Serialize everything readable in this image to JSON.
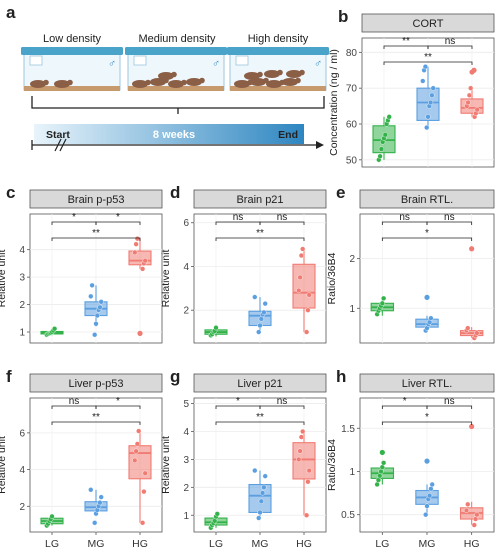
{
  "panel_a": {
    "letter": "a",
    "cage_labels": [
      "Low density",
      "Medium density",
      "High density"
    ],
    "male_symbol": "♂",
    "timeline_start": "Start",
    "timeline_mid": "8 weeks",
    "timeline_end": "End",
    "colors": {
      "cage_lid": "#4aa3c8",
      "mouse": "#8b5e46",
      "bedding": "#c79a6e",
      "timeline_light": "#e8f4fb",
      "timeline_dark": "#2e86c1"
    }
  },
  "colors": {
    "LG": "#33b24a",
    "MG": "#5b9fe0",
    "HG": "#f07b72",
    "facet_strip": "#d9d9d9"
  },
  "chart_data": [
    {
      "id": "b",
      "letter": "b",
      "type": "box",
      "title": "CORT",
      "ylabel": "Concentration (ng / ml)",
      "categories": [
        "LG",
        "MG",
        "HG"
      ],
      "show_xticks": false,
      "ylim": [
        48,
        84
      ],
      "yticks": [
        50,
        60,
        70,
        80
      ],
      "groups": [
        {
          "name": "LG",
          "min": 50,
          "q1": 52,
          "median": 55.5,
          "q3": 59.5,
          "max": 62,
          "points": [
            50,
            51,
            53,
            55,
            56,
            57,
            60,
            61,
            62
          ],
          "outliers": []
        },
        {
          "name": "MG",
          "min": 59,
          "q1": 61,
          "median": 66,
          "q3": 70,
          "max": 76,
          "points": [
            59,
            62,
            65,
            66,
            68,
            70,
            72,
            75,
            76
          ],
          "outliers": []
        },
        {
          "name": "HG",
          "min": 62,
          "q1": 63,
          "median": 64.5,
          "q3": 67,
          "max": 70,
          "points": [
            62,
            63,
            64,
            65,
            66,
            68,
            70
          ],
          "outliers": [
            74.5,
            75
          ]
        }
      ],
      "significance": [
        {
          "from": 0,
          "to": 1,
          "label": "**"
        },
        {
          "from": 1,
          "to": 2,
          "label": "ns"
        },
        {
          "from": 0,
          "to": 2,
          "label": "**"
        }
      ]
    },
    {
      "id": "c",
      "letter": "c",
      "type": "box",
      "title": "Brain p-p53",
      "ylabel": "Relative unit",
      "categories": [
        "LG",
        "MG",
        "HG"
      ],
      "show_xticks": false,
      "ylim": [
        0.6,
        5.3
      ],
      "yticks": [
        1,
        2,
        3,
        4
      ],
      "groups": [
        {
          "name": "LG",
          "min": 0.88,
          "q1": 0.93,
          "median": 0.97,
          "q3": 1.02,
          "max": 1.12,
          "points": [
            0.9,
            0.93,
            0.95,
            0.97,
            1.0,
            1.05,
            1.12
          ],
          "outliers": []
        },
        {
          "name": "MG",
          "min": 1.2,
          "q1": 1.6,
          "median": 1.85,
          "q3": 2.1,
          "max": 2.7,
          "points": [
            0.9,
            1.3,
            1.6,
            1.8,
            1.9,
            2.1,
            2.3,
            2.7
          ],
          "outliers": []
        },
        {
          "name": "HG",
          "min": 3.3,
          "q1": 3.45,
          "median": 3.6,
          "q3": 3.95,
          "max": 4.4,
          "points": [
            3.3,
            3.5,
            3.6,
            3.9,
            4.2,
            4.4
          ],
          "outliers": [
            0.95
          ]
        }
      ],
      "significance": [
        {
          "from": 0,
          "to": 1,
          "label": "*"
        },
        {
          "from": 1,
          "to": 2,
          "label": "*"
        },
        {
          "from": 0,
          "to": 2,
          "label": "**"
        }
      ]
    },
    {
      "id": "d",
      "letter": "d",
      "type": "box",
      "title": "Brain p21",
      "ylabel": "Relative unit",
      "categories": [
        "LG",
        "MG",
        "HG"
      ],
      "show_xticks": false,
      "ylim": [
        0.5,
        6.4
      ],
      "yticks": [
        2,
        4,
        6
      ],
      "groups": [
        {
          "name": "LG",
          "min": 0.8,
          "q1": 0.9,
          "median": 1.0,
          "q3": 1.1,
          "max": 1.2,
          "points": [
            0.85,
            0.9,
            1.0,
            1.05,
            1.2
          ],
          "outliers": []
        },
        {
          "name": "MG",
          "min": 1.0,
          "q1": 1.3,
          "median": 1.75,
          "q3": 1.95,
          "max": 2.6,
          "points": [
            1.0,
            1.3,
            1.6,
            1.8,
            1.9,
            2.3,
            2.6
          ],
          "outliers": []
        },
        {
          "name": "HG",
          "min": 1.0,
          "q1": 2.1,
          "median": 2.8,
          "q3": 4.1,
          "max": 4.8,
          "points": [
            1.0,
            2.0,
            2.7,
            2.9,
            3.5,
            4.5,
            4.8
          ],
          "outliers": []
        }
      ],
      "significance": [
        {
          "from": 0,
          "to": 1,
          "label": "ns"
        },
        {
          "from": 1,
          "to": 2,
          "label": "ns"
        },
        {
          "from": 0,
          "to": 2,
          "label": "**"
        }
      ]
    },
    {
      "id": "e",
      "letter": "e",
      "type": "box",
      "title": "Brain RTL.",
      "ylabel": "Ratio/36B4",
      "categories": [
        "LG",
        "MG",
        "HG"
      ],
      "show_xticks": false,
      "ylim": [
        0.3,
        2.9
      ],
      "yticks": [
        1,
        2
      ],
      "groups": [
        {
          "name": "LG",
          "min": 0.85,
          "q1": 0.95,
          "median": 1.02,
          "q3": 1.1,
          "max": 1.2,
          "points": [
            0.88,
            0.95,
            1.0,
            1.05,
            1.1,
            1.2
          ],
          "outliers": []
        },
        {
          "name": "MG",
          "min": 0.55,
          "q1": 0.62,
          "median": 0.68,
          "q3": 0.78,
          "max": 0.85,
          "points": [
            0.55,
            0.6,
            0.68,
            0.72,
            0.8
          ],
          "outliers": [
            1.22
          ]
        },
        {
          "name": "HG",
          "min": 0.4,
          "q1": 0.45,
          "median": 0.5,
          "q3": 0.55,
          "max": 0.62,
          "points": [
            0.4,
            0.45,
            0.5,
            0.55,
            0.6
          ],
          "outliers": [
            2.2
          ]
        }
      ],
      "significance": [
        {
          "from": 0,
          "to": 1,
          "label": "ns"
        },
        {
          "from": 1,
          "to": 2,
          "label": "ns"
        },
        {
          "from": 0,
          "to": 2,
          "label": "*"
        }
      ]
    },
    {
      "id": "f",
      "letter": "f",
      "type": "box",
      "title": "Liver p-p53",
      "ylabel": "Relative unit",
      "categories": [
        "LG",
        "MG",
        "HG"
      ],
      "show_xticks": true,
      "ylim": [
        0.6,
        7.9
      ],
      "yticks": [
        2,
        4,
        6
      ],
      "groups": [
        {
          "name": "LG",
          "min": 0.95,
          "q1": 1.05,
          "median": 1.2,
          "q3": 1.35,
          "max": 1.5,
          "points": [
            0.95,
            1.05,
            1.2,
            1.3,
            1.45
          ],
          "outliers": []
        },
        {
          "name": "MG",
          "min": 1.5,
          "q1": 1.75,
          "median": 1.95,
          "q3": 2.25,
          "max": 2.9,
          "points": [
            1.1,
            1.6,
            1.8,
            2.0,
            2.2,
            2.5,
            2.9
          ],
          "outliers": []
        },
        {
          "name": "HG",
          "min": 1.1,
          "q1": 3.5,
          "median": 4.9,
          "q3": 5.3,
          "max": 6.1,
          "points": [
            1.1,
            2.8,
            3.8,
            4.5,
            5.0,
            5.4,
            6.1
          ],
          "outliers": []
        }
      ],
      "significance": [
        {
          "from": 0,
          "to": 1,
          "label": "ns"
        },
        {
          "from": 1,
          "to": 2,
          "label": "*"
        },
        {
          "from": 0,
          "to": 2,
          "label": "**"
        }
      ]
    },
    {
      "id": "g",
      "letter": "g",
      "type": "box",
      "title": "Liver p21",
      "ylabel": "Relative unit",
      "categories": [
        "LG",
        "MG",
        "HG"
      ],
      "show_xticks": true,
      "ylim": [
        0.4,
        5.2
      ],
      "yticks": [
        1,
        2,
        3,
        4,
        5
      ],
      "groups": [
        {
          "name": "LG",
          "min": 0.55,
          "q1": 0.65,
          "median": 0.75,
          "q3": 0.9,
          "max": 1.05,
          "points": [
            0.55,
            0.65,
            0.72,
            0.8,
            0.95,
            1.05
          ],
          "outliers": []
        },
        {
          "name": "MG",
          "min": 0.9,
          "q1": 1.1,
          "median": 1.7,
          "q3": 2.1,
          "max": 2.6,
          "points": [
            0.9,
            1.1,
            1.5,
            1.8,
            2.0,
            2.4,
            2.6
          ],
          "outliers": []
        },
        {
          "name": "HG",
          "min": 1.0,
          "q1": 2.3,
          "median": 3.0,
          "q3": 3.6,
          "max": 4.0,
          "points": [
            1.0,
            2.2,
            2.6,
            3.0,
            3.3,
            3.8,
            4.0
          ],
          "outliers": []
        }
      ],
      "significance": [
        {
          "from": 0,
          "to": 1,
          "label": "*"
        },
        {
          "from": 1,
          "to": 2,
          "label": "ns"
        },
        {
          "from": 0,
          "to": 2,
          "label": "**"
        }
      ]
    },
    {
      "id": "h",
      "letter": "h",
      "type": "box",
      "title": "Liver RTL.",
      "ylabel": "Ratio/36B4",
      "categories": [
        "LG",
        "MG",
        "HG"
      ],
      "show_xticks": true,
      "ylim": [
        0.3,
        1.85
      ],
      "yticks": [
        0.5,
        1.0,
        1.5
      ],
      "groups": [
        {
          "name": "LG",
          "min": 0.85,
          "q1": 0.92,
          "median": 0.98,
          "q3": 1.04,
          "max": 1.12,
          "points": [
            0.85,
            0.9,
            0.95,
            1.0,
            1.05,
            1.1
          ],
          "outliers": [
            1.22
          ]
        },
        {
          "name": "MG",
          "min": 0.52,
          "q1": 0.62,
          "median": 0.7,
          "q3": 0.78,
          "max": 0.85,
          "points": [
            0.5,
            0.6,
            0.68,
            0.72,
            0.8,
            0.85
          ],
          "outliers": [
            1.12
          ]
        },
        {
          "name": "HG",
          "min": 0.38,
          "q1": 0.45,
          "median": 0.52,
          "q3": 0.58,
          "max": 0.65,
          "points": [
            0.38,
            0.45,
            0.5,
            0.55,
            0.62
          ],
          "outliers": [
            1.52
          ]
        }
      ],
      "significance": [
        {
          "from": 0,
          "to": 1,
          "label": "*"
        },
        {
          "from": 1,
          "to": 2,
          "label": "ns"
        },
        {
          "from": 0,
          "to": 2,
          "label": "*"
        }
      ]
    }
  ]
}
